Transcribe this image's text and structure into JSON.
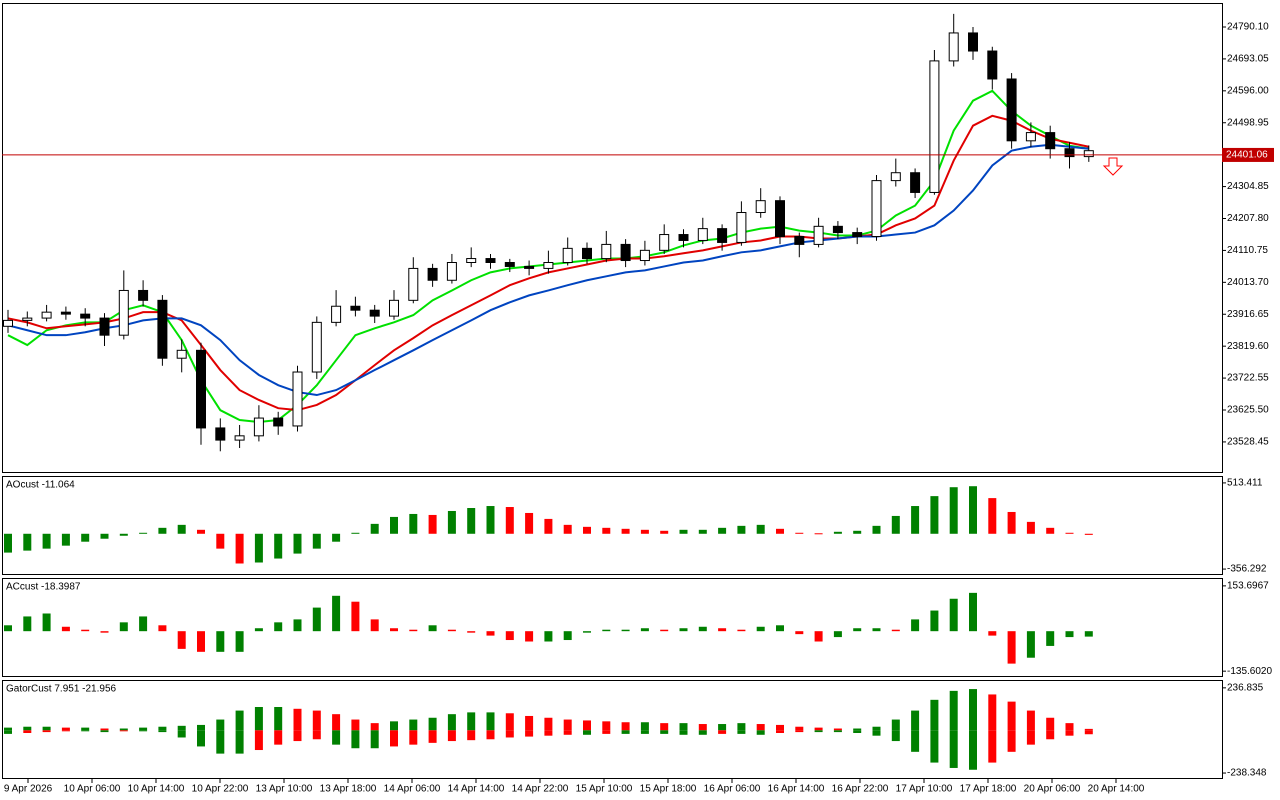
{
  "chart_data": [
    {
      "type": "candlestick",
      "open": [
        23880,
        23898,
        23905,
        23923,
        23917,
        23905,
        23853,
        23989,
        23959,
        23783,
        23807,
        23571,
        23534,
        23547,
        23601,
        23577,
        23741,
        23892,
        23941,
        23929,
        23911,
        23959,
        24056,
        24020,
        24074,
        24086,
        24074,
        24062,
        24056,
        24074,
        24117,
        24086,
        24129,
        24080,
        24111,
        24159,
        24141,
        24177,
        24135,
        24226,
        24262,
        24153,
        24129,
        24184,
        24165,
        24153,
        24323,
        24347,
        24287,
        24687,
        24772,
        24717,
        24632,
        24444,
        24469,
        24420,
        24396
      ],
      "high": [
        23930,
        23925,
        23945,
        23940,
        23935,
        23920,
        24050,
        24020,
        23975,
        23840,
        23830,
        23600,
        23580,
        23640,
        23620,
        23760,
        23910,
        23990,
        23970,
        23945,
        23990,
        24090,
        24070,
        24100,
        24120,
        24100,
        24085,
        24080,
        24110,
        24150,
        24135,
        24170,
        24145,
        24140,
        24190,
        24175,
        24210,
        24190,
        24260,
        24300,
        24275,
        24165,
        24210,
        24200,
        24180,
        24340,
        24390,
        24360,
        24720,
        24830,
        24790,
        24730,
        24650,
        24500,
        24490,
        24440,
        24430
      ],
      "low": [
        23860,
        23880,
        23895,
        23900,
        23880,
        23820,
        23840,
        23940,
        23760,
        23740,
        23520,
        23500,
        23510,
        23530,
        23550,
        23560,
        23720,
        23880,
        23910,
        23890,
        23900,
        23950,
        24000,
        24010,
        24060,
        24055,
        24045,
        24035,
        24040,
        24065,
        24070,
        24075,
        24060,
        24065,
        24100,
        24120,
        24130,
        24110,
        24125,
        24210,
        24130,
        24090,
        24120,
        24145,
        24130,
        24140,
        24305,
        24270,
        24280,
        24670,
        24690,
        24600,
        24420,
        24425,
        24390,
        24360,
        24380
      ],
      "close": [
        23898,
        23905,
        23923,
        23917,
        23905,
        23853,
        23989,
        23959,
        23783,
        23807,
        23571,
        23534,
        23547,
        23601,
        23577,
        23741,
        23892,
        23941,
        23929,
        23911,
        23959,
        24056,
        24020,
        24074,
        24086,
        24074,
        24062,
        24056,
        24074,
        24117,
        24086,
        24129,
        24080,
        24111,
        24159,
        24141,
        24177,
        24135,
        24226,
        24262,
        24153,
        24129,
        24184,
        24165,
        24153,
        24323,
        24347,
        24287,
        24687,
        24772,
        24717,
        24632,
        24444,
        24469,
        24420,
        24396,
        24414
      ],
      "up_color": "#ffffff",
      "down_color": "#000000",
      "lines": [
        {
          "color": "#00e000",
          "values": [
            23853,
            23823,
            23868,
            23883,
            23892,
            23892,
            23929,
            23944,
            23923,
            23838,
            23716,
            23625,
            23595,
            23589,
            23595,
            23641,
            23701,
            23777,
            23853,
            23874,
            23892,
            23914,
            23959,
            23989,
            24020,
            24044,
            24056,
            24062,
            24068,
            24074,
            24080,
            24086,
            24086,
            24093,
            24105,
            24126,
            24141,
            24147,
            24165,
            24177,
            24183,
            24171,
            24165,
            24156,
            24156,
            24171,
            24217,
            24247,
            24323,
            24475,
            24566,
            24596,
            24535,
            24490,
            24459,
            24429,
            24420
          ]
        },
        {
          "color": "#e00000",
          "values": [
            23904,
            23892,
            23874,
            23880,
            23886,
            23892,
            23904,
            23923,
            23923,
            23898,
            23823,
            23747,
            23686,
            23656,
            23631,
            23625,
            23641,
            23671,
            23716,
            23762,
            23807,
            23844,
            23883,
            23914,
            23944,
            23974,
            24005,
            24026,
            24044,
            24056,
            24068,
            24080,
            24086,
            24086,
            24093,
            24102,
            24111,
            24123,
            24135,
            24141,
            24153,
            24153,
            24147,
            24147,
            24153,
            24159,
            24187,
            24208,
            24247,
            24384,
            24490,
            24520,
            24505,
            24475,
            24450,
            24438,
            24426
          ]
        },
        {
          "color": "#0044c0",
          "values": [
            23883,
            23868,
            23853,
            23853,
            23862,
            23874,
            23883,
            23898,
            23904,
            23904,
            23883,
            23838,
            23777,
            23732,
            23701,
            23680,
            23671,
            23686,
            23716,
            23747,
            23777,
            23807,
            23838,
            23868,
            23898,
            23929,
            23953,
            23974,
            23989,
            24005,
            24020,
            24032,
            24044,
            24050,
            24062,
            24074,
            24080,
            24093,
            24105,
            24111,
            24123,
            24135,
            24141,
            24147,
            24153,
            24153,
            24159,
            24165,
            24187,
            24232,
            24293,
            24369,
            24414,
            24426,
            24432,
            24426,
            24420
          ]
        }
      ],
      "price_line": {
        "value": 24401.06,
        "color": "#c00000"
      },
      "ylim": [
        23437,
        24860
      ],
      "yticks": [
        {
          "value": 24790.1,
          "label": "24790.10"
        },
        24693.05,
        {
          "value": 24596,
          "label": "24596.00"
        },
        24498.95,
        24304.85,
        {
          "value": 24207.8,
          "label": "24207.80"
        },
        24110.75,
        {
          "value": 24013.7,
          "label": "24013.70"
        },
        23916.65,
        {
          "value": 23819.6,
          "label": "23819.60"
        },
        23722.55,
        {
          "value": 23625.5,
          "label": "23625.50"
        },
        23528.45
      ],
      "x_labels": [
        "9 Apr 2026",
        "10 Apr 06:00",
        "10 Apr 14:00",
        "10 Apr 22:00",
        "13 Apr 10:00",
        "13 Apr 18:00",
        "14 Apr 06:00",
        "14 Apr 14:00",
        "14 Apr 22:00",
        "15 Apr 10:00",
        "15 Apr 18:00",
        "16 Apr 06:00",
        "16 Apr 14:00",
        "16 Apr 22:00",
        "17 Apr 10:00",
        "17 Apr 18:00",
        "20 Apr 06:00",
        "20 Apr 14:00"
      ]
    },
    {
      "type": "bar",
      "title": "AOcust -11.064",
      "up_color": "#008000",
      "down_color": "#ff0000",
      "values": [
        -190,
        -170,
        -150,
        -120,
        -80,
        -50,
        -20,
        10,
        60,
        90,
        40,
        -150,
        -300,
        -290,
        -250,
        -200,
        -150,
        -80,
        10,
        100,
        170,
        200,
        190,
        230,
        260,
        280,
        270,
        210,
        150,
        90,
        70,
        60,
        50,
        40,
        30,
        40,
        40,
        60,
        80,
        90,
        50,
        10,
        5,
        20,
        30,
        80,
        180,
        280,
        380,
        470,
        480,
        360,
        220,
        120,
        60,
        10,
        -11.064
      ],
      "ylim": [
        -406,
        573
      ],
      "yticks": [
        513.411,
        -356.292
      ]
    },
    {
      "type": "bar",
      "title": "ACcust -18.3987",
      "up_color": "#008000",
      "down_color": "#ff0000",
      "values": [
        20,
        50,
        60,
        15,
        5,
        -5,
        30,
        50,
        20,
        -60,
        -70,
        -70,
        -70,
        10,
        30,
        40,
        80,
        120,
        100,
        40,
        10,
        5,
        20,
        5,
        -5,
        -15,
        -30,
        -35,
        -35,
        -30,
        -5,
        5,
        5,
        10,
        5,
        10,
        15,
        10,
        5,
        15,
        20,
        -10,
        -35,
        -20,
        10,
        10,
        5,
        40,
        70,
        110,
        130,
        -15,
        -110,
        -90,
        -50,
        -20,
        -18.3987
      ],
      "ylim": [
        -152,
        177
      ],
      "yticks": [
        153.6967,
        {
          "value": -135.602,
          "label": "-135.6020"
        }
      ]
    },
    {
      "type": "gator",
      "title": "GatorCust 7.951 -21.956",
      "up_color": "#008000",
      "down_color": "#ff0000",
      "series": [
        {
          "values": [
            15,
            20,
            20,
            15,
            15,
            10,
            10,
            15,
            20,
            25,
            30,
            60,
            110,
            130,
            130,
            120,
            110,
            90,
            60,
            40,
            50,
            60,
            70,
            90,
            100,
            100,
            95,
            80,
            70,
            60,
            55,
            50,
            45,
            45,
            40,
            40,
            35,
            35,
            40,
            35,
            30,
            20,
            15,
            10,
            10,
            20,
            60,
            110,
            170,
            220,
            230,
            200,
            160,
            110,
            70,
            40,
            7.951
          ]
        },
        {
          "values": [
            -20,
            -15,
            -10,
            -5,
            -5,
            -10,
            -5,
            -5,
            -10,
            -40,
            -90,
            -130,
            -130,
            -110,
            -80,
            -60,
            -50,
            -80,
            -100,
            -100,
            -90,
            -80,
            -70,
            -60,
            -55,
            -50,
            -40,
            -35,
            -30,
            -25,
            -25,
            -20,
            -20,
            -20,
            -20,
            -25,
            -25,
            -20,
            -20,
            -25,
            -15,
            -10,
            -10,
            -10,
            -15,
            -30,
            -60,
            -120,
            -180,
            -210,
            -220,
            -180,
            -120,
            -80,
            -50,
            -30,
            -21.956
          ]
        }
      ],
      "ylim": [
        -266,
        275
      ],
      "yticks": [
        236.835,
        -238.348
      ]
    }
  ]
}
